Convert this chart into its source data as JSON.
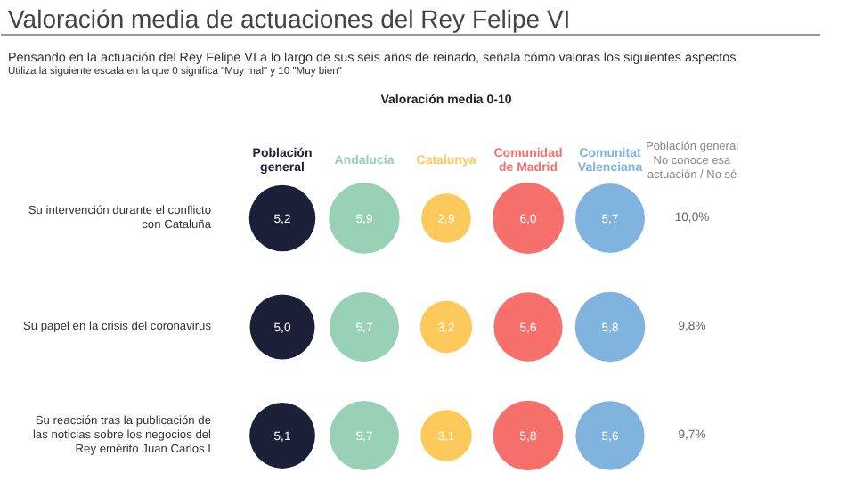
{
  "chart_data": {
    "type": "other",
    "title": "Valoración media de actuaciones del Rey Felipe VI",
    "subtitle": "Pensando en la actuación del Rey Felipe VI a lo largo de sus seis años de reinado, señala cómo valoras los siguientes aspectos",
    "annotations": [
      "Utiliza la siguiente escala en la que 0 significa \"Muy mal\" y 10 \"Muy bien\"",
      "Valoración media 0-10"
    ],
    "categories": [
      "Su intervención durante el conflicto con Cataluña",
      "Su papel en la crisis del coronavirus",
      "Su reacción tras la publicación de las noticias sobre los negocios del Rey emérito Juan Carlos I"
    ],
    "series": [
      {
        "name": "Población general",
        "color": "#1c1f38",
        "values": [
          5.2,
          5.0,
          5.1
        ],
        "value_labels": [
          "5,2",
          "5,0",
          "5,1"
        ]
      },
      {
        "name": "Andalucía",
        "color": "#98d1b5",
        "values": [
          5.9,
          5.7,
          5.7
        ],
        "value_labels": [
          "5,9",
          "5,7",
          "5,7"
        ]
      },
      {
        "name": "Catalunya",
        "color": "#fec95b",
        "values": [
          2.9,
          3.2,
          3.1
        ],
        "value_labels": [
          "2,9",
          "3,2",
          "3,1"
        ]
      },
      {
        "name": "Comunidad de Madrid",
        "color": "#f7706b",
        "values": [
          6.0,
          5.6,
          5.8
        ],
        "value_labels": [
          "6,0",
          "5,6",
          "5,8"
        ]
      },
      {
        "name": "Comunitat Valenciana",
        "color": "#80b4de",
        "values": [
          5.7,
          5.8,
          5.6
        ],
        "value_labels": [
          "5,7",
          "5,8",
          "5,6"
        ]
      },
      {
        "name": "Población general No conoce esa actuación / No sé",
        "values": [
          10.0,
          9.8,
          9.7
        ],
        "value_labels": [
          "10,0%",
          "9,8%",
          "9,7%"
        ]
      }
    ]
  }
}
